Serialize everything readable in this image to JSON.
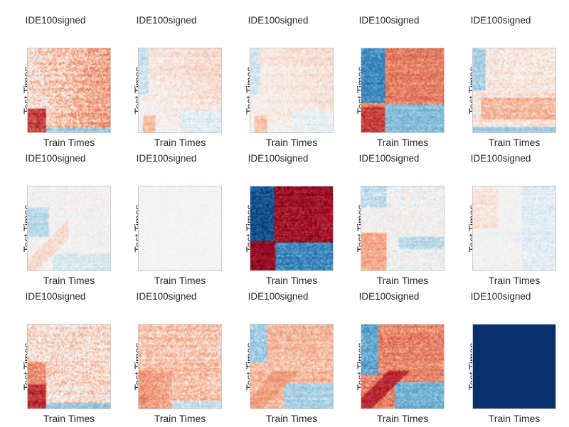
{
  "chart_data": {
    "type": "heatmap",
    "layout": "3 rows x 5 columns of small-multiple temporal-generalization matrices",
    "colormap": "RdBu_r (blue = negative, white = zero, red = positive)",
    "colors": {
      "frame": "#cccccc",
      "text": "#262626",
      "uniform_panel": "#08306b"
    },
    "panels": [
      {
        "title": "IDE100signed",
        "xlabel": "Train Times",
        "ylabel": "Test Times",
        "pattern": "early-diagonal-red",
        "strength": 0.8
      },
      {
        "title": "IDE100signed",
        "xlabel": "Train Times",
        "ylabel": "Test Times",
        "pattern": "weak-early-red",
        "strength": 0.4
      },
      {
        "title": "IDE100signed",
        "xlabel": "Train Times",
        "ylabel": "Test Times",
        "pattern": "weak-early-red",
        "strength": 0.35
      },
      {
        "title": "IDE100signed",
        "xlabel": "Train Times",
        "ylabel": "Test Times",
        "pattern": "strong-block",
        "strength": 0.85
      },
      {
        "title": "IDE100signed",
        "xlabel": "Train Times",
        "ylabel": "Test Times",
        "pattern": "late-red",
        "strength": 0.5
      },
      {
        "title": "IDE100signed",
        "xlabel": "Train Times",
        "ylabel": "Test Times",
        "pattern": "mostly-blue",
        "strength": 0.35
      },
      {
        "title": "IDE100signed",
        "xlabel": "Train Times",
        "ylabel": "Test Times",
        "pattern": "noise",
        "strength": 0.2
      },
      {
        "title": "IDE100signed",
        "xlabel": "Train Times",
        "ylabel": "Test Times",
        "pattern": "very-strong-block",
        "strength": 1.0
      },
      {
        "title": "IDE100signed",
        "xlabel": "Train Times",
        "ylabel": "Test Times",
        "pattern": "early-red-late-blue",
        "strength": 0.5
      },
      {
        "title": "IDE100signed",
        "xlabel": "Train Times",
        "ylabel": "Test Times",
        "pattern": "weak-mixed",
        "strength": 0.3
      },
      {
        "title": "IDE100signed",
        "xlabel": "Train Times",
        "ylabel": "Test Times",
        "pattern": "early-column-red",
        "strength": 0.8
      },
      {
        "title": "IDE100signed",
        "xlabel": "Train Times",
        "ylabel": "Test Times",
        "pattern": "broad-early-red",
        "strength": 0.65
      },
      {
        "title": "IDE100signed",
        "xlabel": "Train Times",
        "ylabel": "Test Times",
        "pattern": "moderate-block",
        "strength": 0.55
      },
      {
        "title": "IDE100signed",
        "xlabel": "Train Times",
        "ylabel": "Test Times",
        "pattern": "diagonal-block",
        "strength": 0.8
      },
      {
        "title": "IDE100signed",
        "xlabel": "Train Times",
        "ylabel": "Test Times",
        "pattern": "uniform",
        "strength": 1.0
      }
    ]
  }
}
